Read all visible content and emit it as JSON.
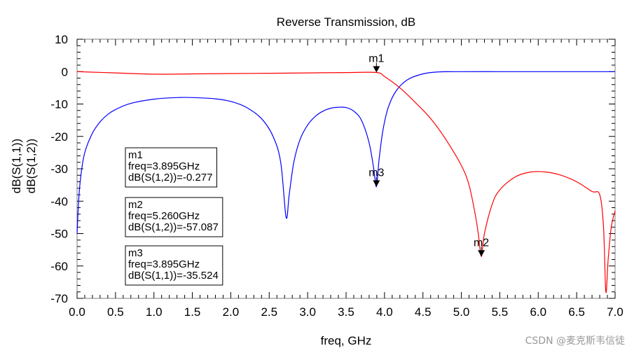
{
  "chart_data": {
    "type": "line",
    "title": "Reverse Transmission, dB",
    "xlabel": "freq, GHz",
    "ylabel_parts": [
      {
        "text": "dB(S(1,1))",
        "color": "#0000ff"
      },
      {
        "text": "dB(S(1,2))",
        "color": "#ff0000"
      }
    ],
    "xlim": [
      0,
      7
    ],
    "ylim": [
      -70,
      10
    ],
    "x_ticks": [
      "0.0",
      "0.5",
      "1.0",
      "1.5",
      "2.0",
      "2.5",
      "3.0",
      "3.5",
      "4.0",
      "4.5",
      "5.0",
      "5.5",
      "6.0",
      "6.5",
      "7.0"
    ],
    "y_ticks": [
      "10",
      "0",
      "-10",
      "-20",
      "-30",
      "-40",
      "-50",
      "-60",
      "-70"
    ],
    "series": [
      {
        "name": "dB(S(1,1))",
        "color": "#0000ff",
        "points": [
          [
            0.0,
            -50
          ],
          [
            0.02,
            -40
          ],
          [
            0.05,
            -32
          ],
          [
            0.1,
            -25
          ],
          [
            0.2,
            -19
          ],
          [
            0.3,
            -15.5
          ],
          [
            0.4,
            -13.2
          ],
          [
            0.5,
            -11.7
          ],
          [
            0.7,
            -9.8
          ],
          [
            1.0,
            -8.5
          ],
          [
            1.3,
            -8.0
          ],
          [
            1.5,
            -8.0
          ],
          [
            1.8,
            -8.4
          ],
          [
            2.0,
            -9.2
          ],
          [
            2.2,
            -11
          ],
          [
            2.4,
            -14.5
          ],
          [
            2.55,
            -20
          ],
          [
            2.65,
            -28
          ],
          [
            2.72,
            -45
          ],
          [
            2.76,
            -38
          ],
          [
            2.82,
            -28
          ],
          [
            2.9,
            -21
          ],
          [
            3.0,
            -16.5
          ],
          [
            3.1,
            -13.8
          ],
          [
            3.2,
            -12.2
          ],
          [
            3.3,
            -11.3
          ],
          [
            3.4,
            -11.0
          ],
          [
            3.5,
            -11.1
          ],
          [
            3.6,
            -12.2
          ],
          [
            3.7,
            -15
          ],
          [
            3.8,
            -22
          ],
          [
            3.86,
            -30
          ],
          [
            3.895,
            -35.524
          ],
          [
            3.93,
            -27
          ],
          [
            3.98,
            -18
          ],
          [
            4.05,
            -11
          ],
          [
            4.15,
            -6
          ],
          [
            4.3,
            -2.5
          ],
          [
            4.5,
            -0.7
          ],
          [
            4.7,
            -0.1
          ],
          [
            5.0,
            0
          ],
          [
            5.5,
            0
          ],
          [
            6.0,
            0
          ],
          [
            6.5,
            0
          ],
          [
            7.0,
            0
          ]
        ]
      },
      {
        "name": "dB(S(1,2))",
        "color": "#ff0000",
        "points": [
          [
            0.0,
            0
          ],
          [
            0.5,
            -0.4
          ],
          [
            1.0,
            -0.8
          ],
          [
            1.5,
            -0.7
          ],
          [
            2.0,
            -0.6
          ],
          [
            2.5,
            -0.5
          ],
          [
            3.0,
            -0.4
          ],
          [
            3.5,
            -0.3
          ],
          [
            3.895,
            -0.277
          ],
          [
            4.0,
            -1.5
          ],
          [
            4.2,
            -5
          ],
          [
            4.4,
            -9.5
          ],
          [
            4.6,
            -14.5
          ],
          [
            4.8,
            -21
          ],
          [
            5.0,
            -29
          ],
          [
            5.1,
            -35
          ],
          [
            5.18,
            -44
          ],
          [
            5.22,
            -50
          ],
          [
            5.26,
            -57.087
          ],
          [
            5.3,
            -50
          ],
          [
            5.4,
            -41
          ],
          [
            5.5,
            -36.5
          ],
          [
            5.7,
            -32.5
          ],
          [
            5.9,
            -31
          ],
          [
            6.1,
            -31
          ],
          [
            6.3,
            -32
          ],
          [
            6.5,
            -34
          ],
          [
            6.7,
            -37
          ],
          [
            6.8,
            -38
          ],
          [
            6.85,
            -48
          ],
          [
            6.88,
            -68
          ],
          [
            6.91,
            -58
          ],
          [
            6.95,
            -48
          ],
          [
            7.0,
            -43
          ]
        ]
      }
    ],
    "markers": [
      {
        "name": "m1",
        "x": 3.895,
        "y": -0.277,
        "label_pos": "above"
      },
      {
        "name": "m2",
        "x": 5.26,
        "y": -57.087,
        "label_pos": "above"
      },
      {
        "name": "m3",
        "x": 3.895,
        "y": -35.524,
        "label_pos": "above"
      }
    ],
    "marker_boxes": [
      {
        "lines": [
          "m1",
          "freq=3.895GHz",
          "dB(S(1,2))=-0.277"
        ]
      },
      {
        "lines": [
          "m2",
          "freq=5.260GHz",
          "dB(S(1,2))=-57.087"
        ]
      },
      {
        "lines": [
          "m3",
          "freq=3.895GHz",
          "dB(S(1,1))=-35.524"
        ]
      }
    ]
  },
  "watermark": "CSDN @麦克斯韦信徒"
}
